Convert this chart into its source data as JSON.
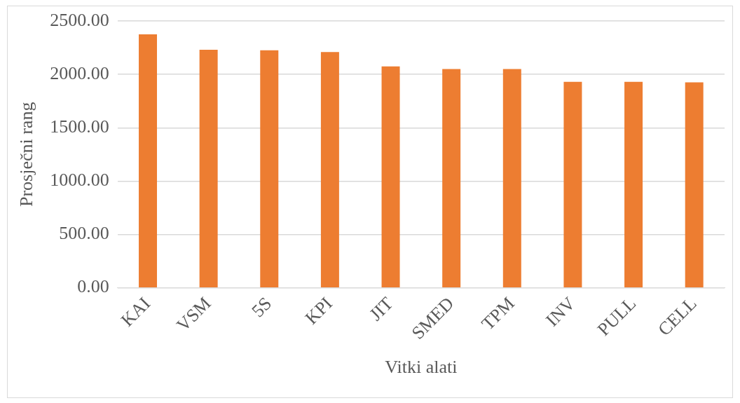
{
  "chart_data": {
    "type": "bar",
    "xlabel": "Vitki alati",
    "ylabel": "Prosječni rang",
    "categories": [
      "KAI",
      "VSM",
      "5S",
      "KPI",
      "JIT",
      "SMED",
      "TPM",
      "INV",
      "PULL",
      "CELL"
    ],
    "values": [
      2375,
      2230,
      2225,
      2210,
      2075,
      2050,
      2050,
      1930,
      1930,
      1925
    ],
    "color": "#ed7d31",
    "ylim": [
      0,
      2500
    ],
    "yticks": [
      {
        "value": 0,
        "label": "0.00"
      },
      {
        "value": 500,
        "label": "500.00"
      },
      {
        "value": 1000,
        "label": "1000.00"
      },
      {
        "value": 1500,
        "label": "1500.00"
      },
      {
        "value": 2000,
        "label": "2000.00"
      },
      {
        "value": 2500,
        "label": "2500.00"
      }
    ],
    "grid": "y",
    "legend": false
  }
}
